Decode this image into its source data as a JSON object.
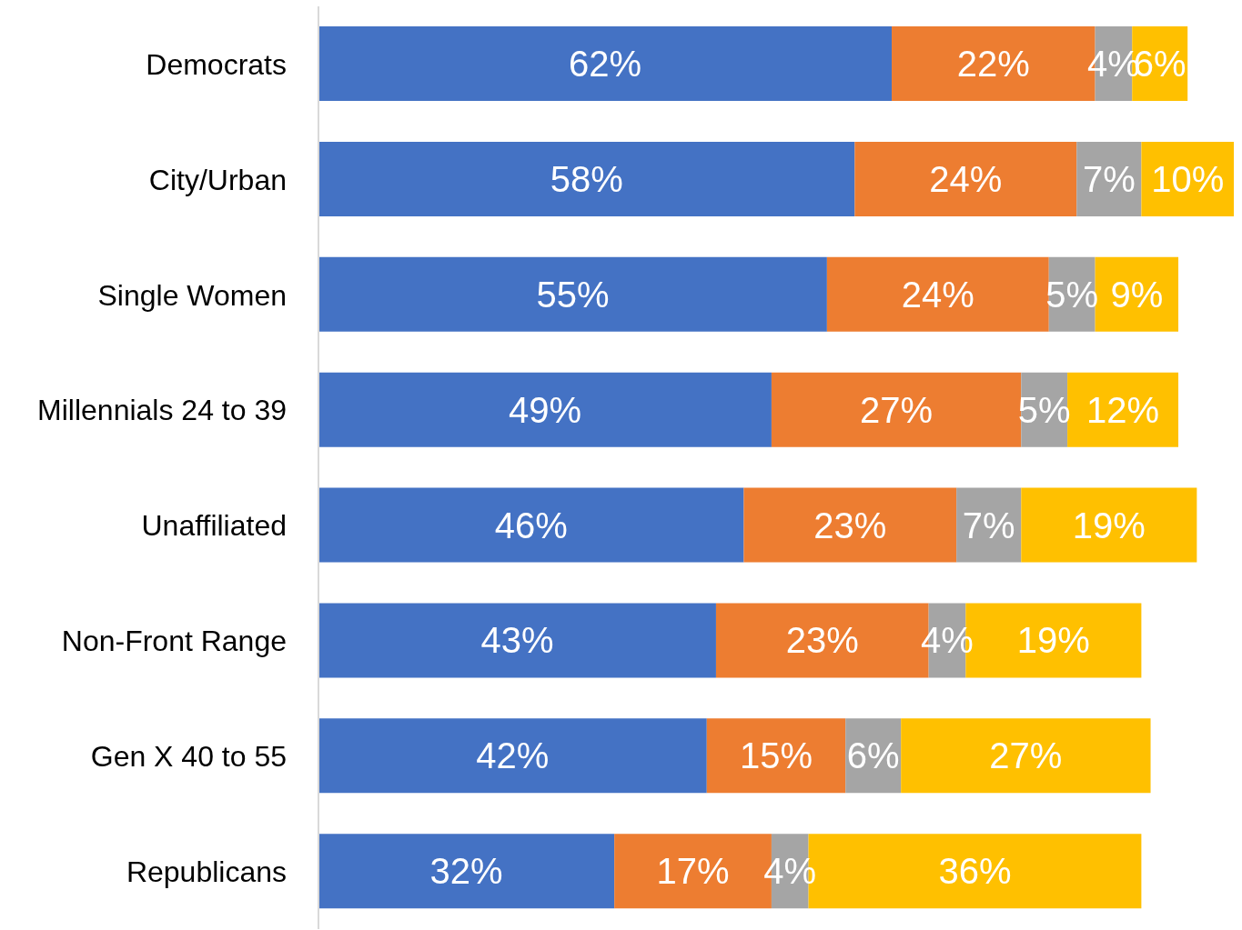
{
  "chart_data": {
    "type": "bar",
    "orientation": "horizontal",
    "stacked": true,
    "tick_labels": "y",
    "categories": [
      "Democrats",
      "City/Urban",
      "Single Women",
      "Millennials 24 to 39",
      "Unaffiliated",
      "Non-Front Range",
      "Gen X 40 to 55",
      "Republicans"
    ],
    "series": [
      {
        "color": "#4472c4",
        "values": [
          62,
          58,
          55,
          49,
          46,
          43,
          42,
          32
        ],
        "value_labels": [
          "62%",
          "58%",
          "55%",
          "49%",
          "46%",
          "43%",
          "42%",
          "32%"
        ]
      },
      {
        "color": "#ed7d31",
        "values": [
          22,
          24,
          24,
          27,
          23,
          23,
          15,
          17
        ],
        "value_labels": [
          "22%",
          "24%",
          "24%",
          "27%",
          "23%",
          "23%",
          "15%",
          "17%"
        ]
      },
      {
        "color": "#a5a5a5",
        "values": [
          4,
          7,
          5,
          5,
          7,
          4,
          6,
          4
        ],
        "value_labels": [
          "4%",
          "7%",
          "5%",
          "5%",
          "7%",
          "4%",
          "6%",
          "4%"
        ]
      },
      {
        "color": "#ffc000",
        "values": [
          6,
          10,
          9,
          12,
          19,
          19,
          27,
          36
        ],
        "value_labels": [
          "6%",
          "10%",
          "9%",
          "12%",
          "19%",
          "19%",
          "27%",
          "36%"
        ]
      }
    ]
  }
}
